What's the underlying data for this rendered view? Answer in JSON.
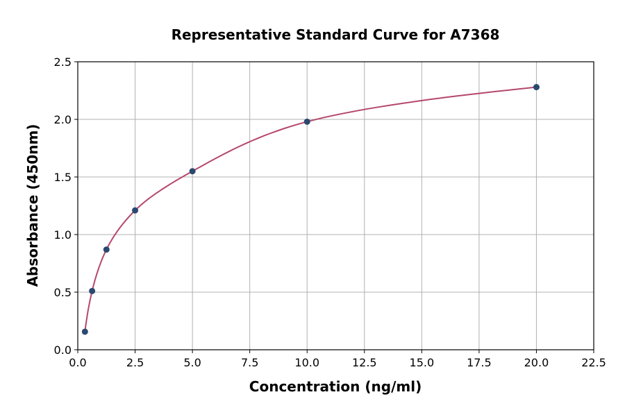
{
  "chart_data": {
    "type": "scatter",
    "title": "Representative Standard Curve for A7368",
    "xlabel": "Concentration (ng/ml)",
    "ylabel": "Absorbance (450nm)",
    "xlim": [
      0,
      22.5
    ],
    "ylim": [
      0,
      2.5
    ],
    "xticks": [
      "0.0",
      "2.5",
      "5.0",
      "7.5",
      "10.0",
      "12.5",
      "15.0",
      "17.5",
      "20.0",
      "22.5"
    ],
    "yticks": [
      "0.0",
      "0.5",
      "1.0",
      "1.5",
      "2.0",
      "2.5"
    ],
    "grid": true,
    "points": [
      {
        "x": 0.3125,
        "y": 0.157
      },
      {
        "x": 0.625,
        "y": 0.51
      },
      {
        "x": 1.25,
        "y": 0.87
      },
      {
        "x": 2.5,
        "y": 1.21
      },
      {
        "x": 5,
        "y": 1.55
      },
      {
        "x": 10,
        "y": 1.98
      },
      {
        "x": 20,
        "y": 2.28
      }
    ],
    "fit_curve": true,
    "colors": {
      "points": "#2b4870",
      "curve": "#b5476a",
      "grid": "#b0b0b0"
    }
  }
}
